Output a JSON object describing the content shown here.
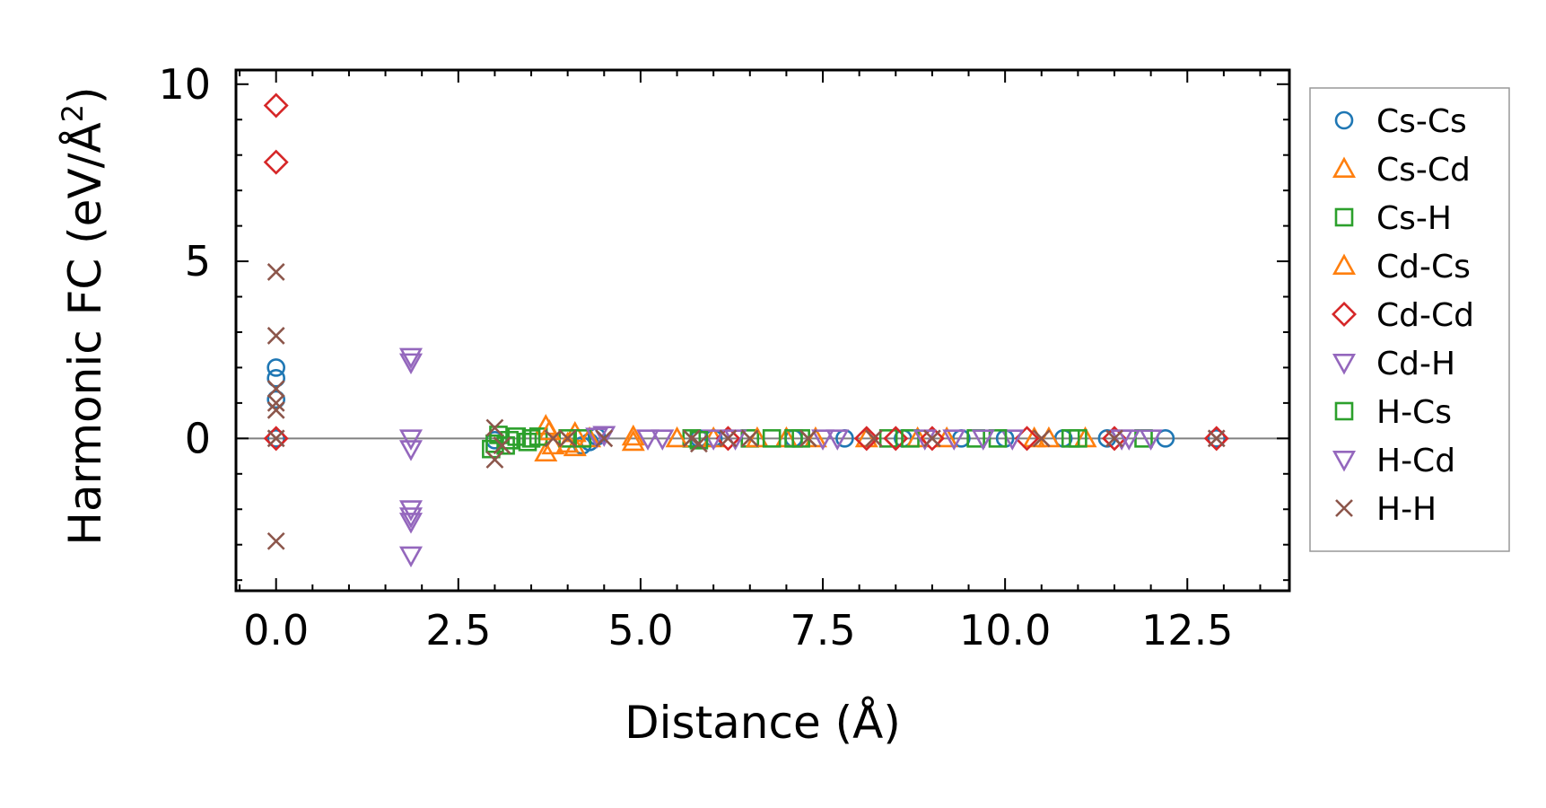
{
  "chart_data": {
    "type": "scatter",
    "xlabel": "Distance (Å)",
    "ylabel_main": "Harmonic FC (eV/Å",
    "ylabel_sup": "2",
    "ylabel_close": ")",
    "xlim": [
      -0.55,
      13.9
    ],
    "ylim": [
      -4.3,
      10.4
    ],
    "xticks": [
      0.0,
      2.5,
      5.0,
      7.5,
      10.0,
      12.5
    ],
    "xtick_labels": [
      "0.0",
      "2.5",
      "5.0",
      "7.5",
      "10.0",
      "12.5"
    ],
    "yticks": [
      0,
      5,
      10
    ],
    "ytick_labels": [
      "0",
      "5",
      "10"
    ],
    "x_minor_step": 0.5,
    "y_minor_step": 1,
    "zero_line": true,
    "grid": false,
    "legend_position": "outside-right",
    "series": [
      {
        "name": "Cs-Cs",
        "marker": "circle",
        "color": "#1f77b4",
        "points": [
          [
            0,
            2.0
          ],
          [
            0,
            1.7
          ],
          [
            0,
            1.1
          ],
          [
            0,
            0.0
          ],
          [
            3.0,
            -0.05
          ],
          [
            4.2,
            -0.2
          ],
          [
            4.3,
            -0.1
          ],
          [
            4.4,
            0.05
          ],
          [
            5.8,
            0.0
          ],
          [
            6.0,
            0.0
          ],
          [
            7.1,
            0.0
          ],
          [
            7.8,
            0.0
          ],
          [
            8.6,
            0.0
          ],
          [
            9.4,
            0.0
          ],
          [
            10.0,
            0.0
          ],
          [
            10.8,
            0.0
          ],
          [
            11.4,
            0.0
          ],
          [
            12.2,
            0.0
          ],
          [
            12.9,
            0.0
          ]
        ]
      },
      {
        "name": "Cs-Cd",
        "marker": "triangle-up",
        "color": "#ff7f0e",
        "points": [
          [
            3.7,
            0.35
          ],
          [
            3.7,
            -0.4
          ],
          [
            3.8,
            -0.2
          ],
          [
            4.1,
            0.15
          ],
          [
            4.1,
            -0.25
          ],
          [
            4.9,
            0.05
          ],
          [
            4.9,
            -0.1
          ],
          [
            6.0,
            0.0
          ],
          [
            7.0,
            0.0
          ],
          [
            8.1,
            0.0
          ],
          [
            9.2,
            0.0
          ],
          [
            10.4,
            0.0
          ],
          [
            11.1,
            0.0
          ]
        ]
      },
      {
        "name": "Cs-H",
        "marker": "square",
        "color": "#2ca02c",
        "points": [
          [
            2.95,
            -0.3
          ],
          [
            3.05,
            0.1
          ],
          [
            3.15,
            -0.2
          ],
          [
            3.3,
            0.05
          ],
          [
            3.45,
            -0.1
          ],
          [
            3.6,
            0.05
          ],
          [
            4.0,
            0.0
          ],
          [
            5.7,
            0.0
          ],
          [
            6.5,
            0.0
          ],
          [
            7.1,
            0.0
          ],
          [
            8.4,
            0.0
          ],
          [
            9.6,
            0.0
          ],
          [
            10.9,
            0.0
          ],
          [
            11.9,
            0.0
          ]
        ]
      },
      {
        "name": "Cd-Cs",
        "marker": "triangle-up",
        "color": "#ff7f0e",
        "points": [
          [
            3.75,
            0.2
          ],
          [
            4.0,
            -0.15
          ],
          [
            4.3,
            0.0
          ],
          [
            5.5,
            0.0
          ],
          [
            6.6,
            0.0
          ],
          [
            7.4,
            0.0
          ],
          [
            8.8,
            0.0
          ],
          [
            10.6,
            0.0
          ]
        ]
      },
      {
        "name": "Cd-Cd",
        "marker": "diamond",
        "color": "#d62728",
        "points": [
          [
            0,
            9.4
          ],
          [
            0,
            7.8
          ],
          [
            0,
            0.0
          ],
          [
            6.2,
            0.0
          ],
          [
            8.1,
            0.0
          ],
          [
            8.5,
            0.0
          ],
          [
            9.0,
            0.0
          ],
          [
            10.3,
            0.0
          ],
          [
            11.5,
            0.0
          ],
          [
            12.9,
            0.0
          ]
        ]
      },
      {
        "name": "Cd-H",
        "marker": "triangle-down",
        "color": "#9467bd",
        "points": [
          [
            1.85,
            2.3
          ],
          [
            1.85,
            2.15
          ],
          [
            1.85,
            0.0
          ],
          [
            1.85,
            -0.3
          ],
          [
            4.5,
            0.1
          ],
          [
            5.3,
            0.0
          ],
          [
            6.0,
            0.0
          ],
          [
            7.5,
            0.0
          ],
          [
            9.3,
            0.0
          ],
          [
            10.1,
            0.0
          ],
          [
            11.7,
            0.0
          ]
        ]
      },
      {
        "name": "H-Cs",
        "marker": "square",
        "color": "#2ca02c",
        "points": [
          [
            3.0,
            -0.15
          ],
          [
            3.2,
            -0.05
          ],
          [
            3.5,
            0.0
          ],
          [
            4.2,
            0.0
          ],
          [
            5.8,
            -0.05
          ],
          [
            6.8,
            0.0
          ],
          [
            7.2,
            0.0
          ],
          [
            8.7,
            0.0
          ],
          [
            9.9,
            0.0
          ],
          [
            11.0,
            0.0
          ]
        ]
      },
      {
        "name": "H-Cd",
        "marker": "triangle-down",
        "color": "#9467bd",
        "points": [
          [
            1.85,
            -2.0
          ],
          [
            1.85,
            -2.2
          ],
          [
            1.85,
            -2.35
          ],
          [
            1.85,
            -3.3
          ],
          [
            4.4,
            0.05
          ],
          [
            5.1,
            0.0
          ],
          [
            6.3,
            0.0
          ],
          [
            7.7,
            0.0
          ],
          [
            8.9,
            0.0
          ],
          [
            9.7,
            0.0
          ],
          [
            11.6,
            0.0
          ],
          [
            12.0,
            0.0
          ]
        ]
      },
      {
        "name": "H-H",
        "marker": "x",
        "color": "#8c564b",
        "points": [
          [
            0,
            4.7
          ],
          [
            0,
            2.9
          ],
          [
            0,
            1.4
          ],
          [
            0,
            1.0
          ],
          [
            0,
            0.8
          ],
          [
            0,
            0.0
          ],
          [
            0,
            -2.9
          ],
          [
            3.0,
            0.3
          ],
          [
            3.0,
            -0.6
          ],
          [
            3.1,
            -0.2
          ],
          [
            3.8,
            0.0
          ],
          [
            4.0,
            0.0
          ],
          [
            4.5,
            0.0
          ],
          [
            5.7,
            0.0
          ],
          [
            5.8,
            -0.15
          ],
          [
            6.2,
            0.0
          ],
          [
            6.5,
            0.0
          ],
          [
            7.3,
            0.0
          ],
          [
            8.2,
            0.0
          ],
          [
            9.0,
            0.0
          ],
          [
            10.5,
            0.0
          ],
          [
            11.5,
            0.0
          ],
          [
            12.9,
            0.0
          ]
        ]
      }
    ]
  }
}
